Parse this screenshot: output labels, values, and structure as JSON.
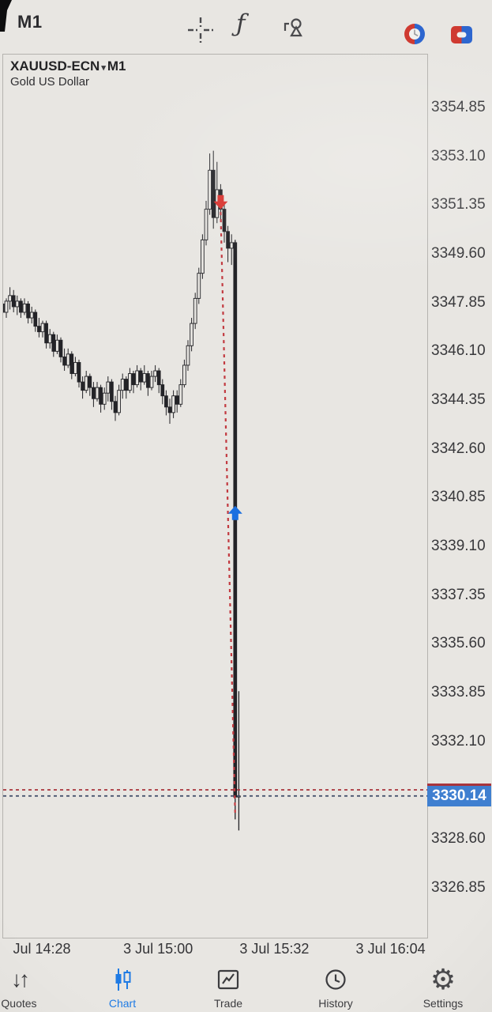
{
  "top_toolbar": {
    "timeframe_label": "M1",
    "icons": [
      {
        "name": "crosshair-icon"
      },
      {
        "name": "function-icon",
        "glyph": "ƒ"
      },
      {
        "name": "objects-icon"
      },
      {
        "name": "status-circle-icon"
      },
      {
        "name": "status-square-icon"
      }
    ]
  },
  "chart_header": {
    "symbol": "XAUUSD-ECN",
    "caret": "▾",
    "timeframe": "M1",
    "description": "Gold US Dollar"
  },
  "price_tag": {
    "text": "3330.14"
  },
  "bottom_nav": {
    "items": [
      {
        "label": "Quotes",
        "active": false
      },
      {
        "label": "Chart",
        "active": true
      },
      {
        "label": "Trade",
        "active": false
      },
      {
        "label": "History",
        "active": false
      },
      {
        "label": "Settings",
        "active": false
      }
    ]
  },
  "colors": {
    "accent_blue": "#1f7be4",
    "sell_red": "#d8332e",
    "buy_blue": "#1a6fe0",
    "bid_tag_bg": "#3f7fd0",
    "ask_line": "#a8343c",
    "bid_line": "#3d4a66",
    "candle": "#232327",
    "background": "#e8e6e2"
  },
  "chart_data": {
    "type": "candlestick",
    "symbol": "XAUUSD-ECN",
    "timeframe": "M1",
    "description": "Gold US Dollar",
    "start_time": "3 Jul 14:17",
    "interval_minutes": 1,
    "bid": 3330.14,
    "bid_text": "3330.14",
    "ask": 3330.36,
    "y_axis": {
      "visible_min": 3326.85,
      "visible_max": 3354.85,
      "tick_step": 1.75,
      "ticks": [
        {
          "text": "3354.85",
          "price": 3354.85
        },
        {
          "text": "3353.10",
          "price": 3353.1
        },
        {
          "text": "3351.35",
          "price": 3351.35
        },
        {
          "text": "3349.60",
          "price": 3349.6
        },
        {
          "text": "3347.85",
          "price": 3347.85
        },
        {
          "text": "3346.10",
          "price": 3346.1
        },
        {
          "text": "3344.35",
          "price": 3344.35
        },
        {
          "text": "3342.60",
          "price": 3342.6
        },
        {
          "text": "3340.85",
          "price": 3340.85
        },
        {
          "text": "3339.10",
          "price": 3339.1
        },
        {
          "text": "3337.35",
          "price": 3337.35
        },
        {
          "text": "3335.60",
          "price": 3335.6
        },
        {
          "text": "3333.85",
          "price": 3333.85
        },
        {
          "text": "3332.10",
          "price": 3332.1
        },
        {
          "text": "3328.60",
          "price": 3328.6
        },
        {
          "text": "3326.85",
          "price": 3326.85
        }
      ]
    },
    "x_axis": {
      "labels": [
        {
          "text": "Jul 14:28",
          "minute_index": 11
        },
        {
          "text": "3 Jul 15:00",
          "minute_index": 43
        },
        {
          "text": "3 Jul 15:32",
          "minute_index": 75
        },
        {
          "text": "3 Jul 16:04",
          "minute_index": 107
        }
      ]
    },
    "ohlc": [
      [
        3347.8,
        3348.2,
        3347.3,
        3347.5
      ],
      [
        3347.5,
        3348.0,
        3347.3,
        3347.9
      ],
      [
        3347.9,
        3348.4,
        3347.6,
        3348.1
      ],
      [
        3348.1,
        3348.3,
        3347.5,
        3347.7
      ],
      [
        3347.7,
        3348.1,
        3347.4,
        3347.9
      ],
      [
        3347.9,
        3348.0,
        3347.3,
        3347.5
      ],
      [
        3347.5,
        3348.0,
        3347.4,
        3347.8
      ],
      [
        3347.8,
        3347.9,
        3347.1,
        3347.3
      ],
      [
        3347.3,
        3347.7,
        3347.1,
        3347.5
      ],
      [
        3347.5,
        3347.6,
        3346.8,
        3347.0
      ],
      [
        3347.0,
        3347.3,
        3346.6,
        3346.8
      ],
      [
        3346.8,
        3347.2,
        3346.6,
        3347.1
      ],
      [
        3347.1,
        3347.2,
        3346.2,
        3346.4
      ],
      [
        3346.4,
        3346.9,
        3346.2,
        3346.7
      ],
      [
        3346.7,
        3346.8,
        3345.9,
        3346.1
      ],
      [
        3346.1,
        3346.7,
        3346.0,
        3346.5
      ],
      [
        3346.5,
        3346.6,
        3345.7,
        3345.9
      ],
      [
        3345.9,
        3346.2,
        3345.4,
        3345.6
      ],
      [
        3345.6,
        3346.2,
        3345.5,
        3346.0
      ],
      [
        3346.0,
        3346.1,
        3345.1,
        3345.3
      ],
      [
        3345.3,
        3345.9,
        3345.2,
        3345.7
      ],
      [
        3345.7,
        3345.8,
        3344.8,
        3345.0
      ],
      [
        3345.0,
        3345.2,
        3344.4,
        3344.7
      ],
      [
        3344.7,
        3345.4,
        3344.6,
        3345.2
      ],
      [
        3345.2,
        3345.3,
        3344.5,
        3344.8
      ],
      [
        3344.8,
        3345.0,
        3344.1,
        3344.4
      ],
      [
        3344.4,
        3345.0,
        3344.3,
        3344.8
      ],
      [
        3344.8,
        3344.9,
        3343.9,
        3344.2
      ],
      [
        3344.2,
        3344.8,
        3344.0,
        3344.6
      ],
      [
        3344.6,
        3345.2,
        3344.3,
        3345.0
      ],
      [
        3345.0,
        3345.1,
        3344.0,
        3344.3
      ],
      [
        3344.3,
        3344.5,
        3343.6,
        3343.9
      ],
      [
        3343.9,
        3344.9,
        3343.8,
        3344.7
      ],
      [
        3344.7,
        3345.3,
        3344.4,
        3345.1
      ],
      [
        3345.1,
        3345.2,
        3344.4,
        3344.7
      ],
      [
        3344.7,
        3345.5,
        3344.6,
        3345.3
      ],
      [
        3345.3,
        3345.4,
        3344.6,
        3344.9
      ],
      [
        3344.9,
        3345.6,
        3344.8,
        3345.4
      ],
      [
        3345.4,
        3345.5,
        3344.7,
        3345.0
      ],
      [
        3345.0,
        3345.6,
        3344.9,
        3345.3
      ],
      [
        3345.3,
        3345.4,
        3344.5,
        3344.8
      ],
      [
        3344.8,
        3345.4,
        3344.7,
        3345.2
      ],
      [
        3345.2,
        3345.6,
        3345.0,
        3345.4
      ],
      [
        3345.4,
        3345.5,
        3344.6,
        3344.9
      ],
      [
        3344.9,
        3345.1,
        3344.2,
        3344.5
      ],
      [
        3344.5,
        3344.7,
        3343.8,
        3344.1
      ],
      [
        3344.1,
        3344.4,
        3343.5,
        3343.9
      ],
      [
        3343.9,
        3344.7,
        3343.7,
        3344.5
      ],
      [
        3344.5,
        3344.7,
        3343.9,
        3344.2
      ],
      [
        3344.2,
        3345.1,
        3344.1,
        3344.9
      ],
      [
        3344.9,
        3345.8,
        3344.8,
        3345.6
      ],
      [
        3345.6,
        3346.5,
        3345.4,
        3346.3
      ],
      [
        3346.3,
        3347.3,
        3346.1,
        3347.1
      ],
      [
        3347.1,
        3348.2,
        3346.9,
        3348.0
      ],
      [
        3348.0,
        3349.1,
        3347.8,
        3348.9
      ],
      [
        3348.9,
        3350.3,
        3348.7,
        3350.1
      ],
      [
        3350.1,
        3351.5,
        3349.9,
        3351.2
      ],
      [
        3351.2,
        3353.2,
        3351.0,
        3352.6
      ],
      [
        3352.6,
        3353.3,
        3350.5,
        3350.9
      ],
      [
        3350.9,
        3352.9,
        3350.7,
        3351.9
      ],
      [
        3351.9,
        3352.1,
        3350.8,
        3351.2
      ],
      [
        3351.2,
        3351.4,
        3350.0,
        3350.4
      ],
      [
        3350.4,
        3350.6,
        3349.3,
        3349.8
      ],
      [
        3349.8,
        3350.3,
        3349.2,
        3350.0
      ],
      [
        3350.0,
        3350.1,
        3329.3,
        3330.1
      ],
      [
        3330.1,
        3333.9,
        3328.9,
        3330.14
      ]
    ],
    "markers": [
      {
        "type": "sell",
        "direction": "down",
        "candle_index": 60,
        "price": 3351.45,
        "color": "#d8332e"
      },
      {
        "type": "buy",
        "direction": "up",
        "candle_index": 64,
        "price": 3340.3,
        "color": "#1a6fe0"
      }
    ],
    "trendline": {
      "style": "dashed",
      "color": "#c23a40",
      "from_candle_index": 60,
      "from_price": 3351.1,
      "to_candle_index": 64,
      "to_price": 3329.5
    }
  }
}
